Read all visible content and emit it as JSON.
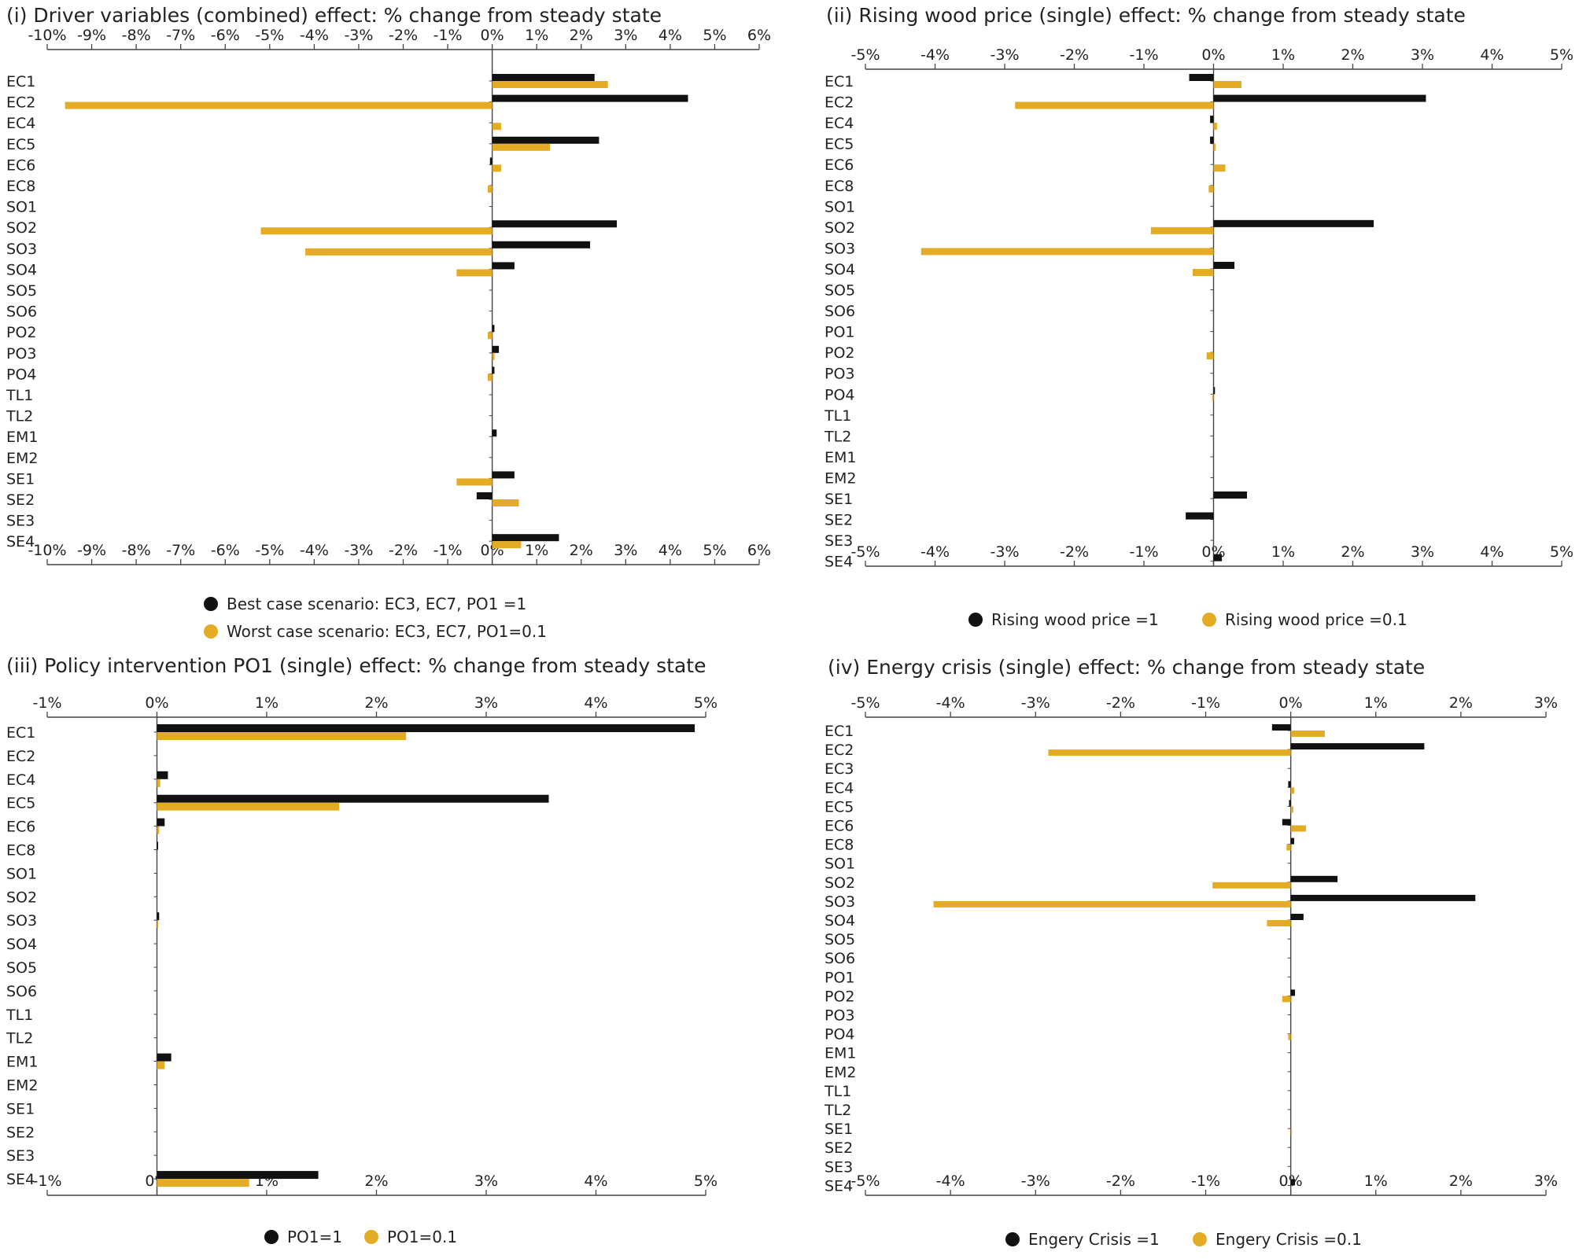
{
  "colors": {
    "series1": "#111111",
    "series2": "#e4ac24",
    "axis": "#444444"
  },
  "chart_data": [
    {
      "id": "p1",
      "type": "bar",
      "orientation": "horizontal",
      "title": "(i) Driver variables (combined) effect: % change from steady state",
      "xlim": [
        -10,
        6
      ],
      "xticks": [
        -10,
        -9,
        -8,
        -7,
        -6,
        -5,
        -4,
        -3,
        -2,
        -1,
        0,
        1,
        2,
        3,
        4,
        5,
        6
      ],
      "tick_suffix": "%",
      "axis_top": true,
      "axis_bottom": true,
      "legend_position": "bottom-stacked",
      "categories": [
        "EC1",
        "EC2",
        "EC4",
        "EC5",
        "EC6",
        "EC8",
        "SO1",
        "SO2",
        "SO3",
        "SO4",
        "SO5",
        "SO6",
        "PO2",
        "PO3",
        "PO4",
        "TL1",
        "TL2",
        "EM1",
        "EM2",
        "SE1",
        "SE2",
        "SE3",
        "SE4"
      ],
      "series": [
        {
          "name": "Best case scenario: EC3, EC7, PO1 =1",
          "values": [
            2.3,
            4.4,
            0,
            2.4,
            -0.05,
            0,
            0,
            2.8,
            2.2,
            0.5,
            0,
            0,
            0.05,
            0.15,
            0.05,
            0,
            0,
            0.1,
            0,
            0.5,
            -0.35,
            0,
            1.5
          ]
        },
        {
          "name": "Worst case scenario: EC3, EC7, PO1=0.1",
          "values": [
            2.6,
            -9.6,
            0.2,
            1.3,
            0.2,
            -0.1,
            0,
            -5.2,
            -4.2,
            -0.8,
            0,
            0,
            -0.1,
            0.05,
            -0.1,
            0,
            0,
            0,
            0,
            -0.8,
            0.6,
            0,
            0.65
          ]
        }
      ]
    },
    {
      "id": "p2",
      "type": "bar",
      "orientation": "horizontal",
      "title": "(ii) Rising wood price (single) effect: % change from steady state",
      "xlim": [
        -5,
        5
      ],
      "xticks": [
        -5,
        -4,
        -3,
        -2,
        -1,
        0,
        1,
        2,
        3,
        4,
        5
      ],
      "tick_suffix": "%",
      "axis_top": true,
      "axis_bottom": true,
      "legend_position": "bottom-inline",
      "categories": [
        "EC1",
        "EC2",
        "EC4",
        "EC5",
        "EC6",
        "EC8",
        "SO1",
        "SO2",
        "SO3",
        "SO4",
        "SO5",
        "SO6",
        "PO1",
        "PO2",
        "PO3",
        "PO4",
        "TL1",
        "TL2",
        "EM1",
        "EM2",
        "SE1",
        "SE2",
        "SE3",
        "SE4"
      ],
      "series": [
        {
          "name": "Rising wood price =1",
          "values": [
            -0.35,
            3.05,
            -0.05,
            -0.05,
            0,
            0,
            0,
            2.3,
            0,
            0.3,
            0,
            0,
            0,
            0,
            0,
            0.02,
            0,
            0,
            0,
            0,
            0.48,
            -0.4,
            0,
            0.12
          ]
        },
        {
          "name": "Rising wood price =0.1",
          "values": [
            0.4,
            -2.85,
            0.05,
            0.03,
            0.17,
            -0.07,
            0,
            -0.9,
            -4.2,
            -0.3,
            0,
            0,
            0,
            -0.1,
            0,
            -0.02,
            0,
            0,
            0,
            0,
            0,
            0,
            0,
            0
          ]
        }
      ]
    },
    {
      "id": "p3",
      "type": "bar",
      "orientation": "horizontal",
      "title": "(iii) Policy intervention PO1 (single) effect: % change from steady state",
      "xlim": [
        -1,
        5
      ],
      "xticks": [
        -1,
        0,
        1,
        2,
        3,
        4,
        5
      ],
      "tick_suffix": "%",
      "axis_top": true,
      "axis_bottom": true,
      "legend_position": "bottom-inline",
      "categories": [
        "EC1",
        "EC2",
        "EC4",
        "EC5",
        "EC6",
        "EC8",
        "SO1",
        "SO2",
        "SO3",
        "SO4",
        "SO5",
        "SO6",
        "TL1",
        "TL2",
        "EM1",
        "EM2",
        "SE1",
        "SE2",
        "SE3",
        "SE4"
      ],
      "series": [
        {
          "name": "PO1=1",
          "values": [
            4.9,
            0,
            0.1,
            3.57,
            0.07,
            0.01,
            0,
            0,
            0.02,
            0,
            0,
            0,
            0,
            0,
            0.13,
            0,
            0,
            0,
            0,
            1.47
          ]
        },
        {
          "name": "PO1=0.1",
          "values": [
            2.27,
            0,
            0.03,
            1.66,
            0.02,
            0,
            0,
            0,
            0.01,
            0,
            0,
            0,
            0,
            0,
            0.07,
            0,
            0,
            0,
            0,
            0.84
          ]
        }
      ]
    },
    {
      "id": "p4",
      "type": "bar",
      "orientation": "horizontal",
      "title": "(iv) Energy crisis (single) effect: % change from steady state",
      "xlim": [
        -5,
        3
      ],
      "xticks": [
        -5,
        -4,
        -3,
        -2,
        -1,
        0,
        1,
        2,
        3
      ],
      "tick_suffix": "%",
      "axis_top": true,
      "axis_bottom": true,
      "legend_position": "bottom-inline",
      "categories": [
        "EC1",
        "EC2",
        "EC3",
        "EC4",
        "EC5",
        "EC6",
        "EC8",
        "SO1",
        "SO2",
        "SO3",
        "SO4",
        "SO5",
        "SO6",
        "PO1",
        "PO2",
        "PO3",
        "PO4",
        "EM1",
        "EM2",
        "TL1",
        "TL2",
        "SE1",
        "SE2",
        "SE3",
        "SE4"
      ],
      "series": [
        {
          "name": "Engery Crisis =1",
          "values": [
            -0.22,
            1.57,
            0,
            -0.03,
            -0.02,
            -0.1,
            0.04,
            0,
            0.55,
            2.17,
            0.15,
            0,
            0,
            0,
            0.05,
            0,
            0,
            0,
            0,
            0,
            0,
            0,
            0,
            0,
            0.05
          ]
        },
        {
          "name": "Engery Crisis =0.1",
          "values": [
            0.4,
            -2.85,
            0,
            0.04,
            0.03,
            0.18,
            -0.05,
            0,
            -0.92,
            -4.2,
            -0.28,
            0,
            0,
            0,
            -0.1,
            0,
            -0.03,
            0,
            0,
            0,
            0,
            0.01,
            0,
            0,
            0
          ]
        }
      ]
    }
  ]
}
